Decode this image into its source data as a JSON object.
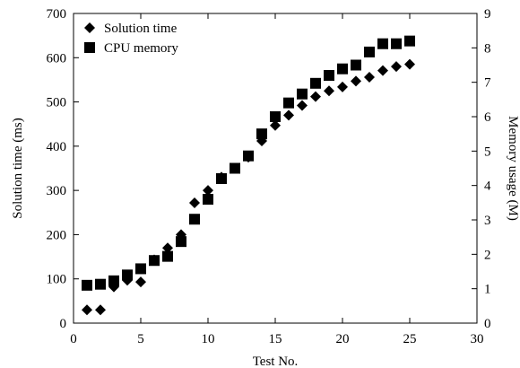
{
  "chart_data": {
    "type": "scatter",
    "xlabel": "Test No.",
    "ylabel": "Solution time (ms)",
    "y2label": "Memory usage (M)",
    "xlim": [
      0,
      30
    ],
    "ylim": [
      0,
      700
    ],
    "y2lim": [
      0,
      9
    ],
    "xticks": [
      0,
      5,
      10,
      15,
      20,
      25,
      30
    ],
    "yticks": [
      0,
      100,
      200,
      300,
      400,
      500,
      600,
      700
    ],
    "y2ticks": [
      0,
      1,
      2,
      3,
      4,
      5,
      6,
      7,
      8,
      9
    ],
    "grid": false,
    "legend_position": "top-left",
    "series": [
      {
        "name": "Solution time",
        "axis": "left",
        "marker": "diamond",
        "x": [
          1,
          2,
          3,
          4,
          5,
          6,
          7,
          8,
          9,
          10,
          11,
          12,
          13,
          14,
          15,
          16,
          17,
          18,
          19,
          20,
          21,
          22,
          23,
          24,
          25
        ],
        "y": [
          30,
          30,
          82,
          97,
          93,
          143,
          170,
          200,
          272,
          300,
          330,
          350,
          375,
          412,
          447,
          470,
          492,
          512,
          525,
          534,
          547,
          556,
          571,
          580,
          585
        ]
      },
      {
        "name": "CPU memory",
        "axis": "right",
        "marker": "square",
        "x": [
          1,
          2,
          3,
          4,
          5,
          6,
          7,
          8,
          9,
          10,
          11,
          12,
          13,
          14,
          15,
          16,
          17,
          18,
          19,
          20,
          21,
          22,
          23,
          24,
          25
        ],
        "y": [
          1.1,
          1.13,
          1.23,
          1.4,
          1.58,
          1.82,
          1.94,
          2.37,
          3.02,
          3.6,
          4.2,
          4.5,
          4.86,
          5.5,
          6.0,
          6.4,
          6.66,
          6.97,
          7.2,
          7.39,
          7.5,
          7.88,
          8.12,
          8.12,
          8.2
        ]
      }
    ]
  }
}
